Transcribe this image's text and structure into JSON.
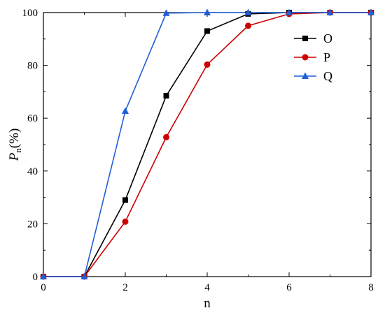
{
  "chart_data": {
    "type": "line",
    "xlabel": "n",
    "ylabel_main": "P",
    "ylabel_sub": "n",
    "ylabel_unit": "(%)",
    "xlim": [
      0,
      8
    ],
    "ylim": [
      0,
      100
    ],
    "x_ticks": [
      0,
      2,
      4,
      6,
      8
    ],
    "y_ticks": [
      0,
      20,
      40,
      60,
      80,
      100
    ],
    "grid": false,
    "legend_position": "top-right",
    "series": [
      {
        "name": "O",
        "color": "#000000",
        "marker": "square",
        "x": [
          0,
          1,
          2,
          3,
          4,
          5,
          6,
          7,
          8
        ],
        "y": [
          0,
          0,
          29,
          68.5,
          93,
          99.5,
          100,
          100,
          100
        ]
      },
      {
        "name": "P",
        "color": "#cc0000",
        "marker": "circle",
        "x": [
          0,
          1,
          2,
          3,
          4,
          5,
          6,
          7,
          8
        ],
        "y": [
          0,
          0,
          20.8,
          52.8,
          80.3,
          95,
          99.5,
          100,
          100
        ]
      },
      {
        "name": "Q",
        "color": "#1f5fd6",
        "marker": "triangle",
        "x": [
          0,
          1,
          2,
          3,
          4,
          5,
          6,
          7,
          8
        ],
        "y": [
          0,
          0,
          62.7,
          99.8,
          100,
          100,
          100,
          100,
          100
        ]
      }
    ]
  }
}
